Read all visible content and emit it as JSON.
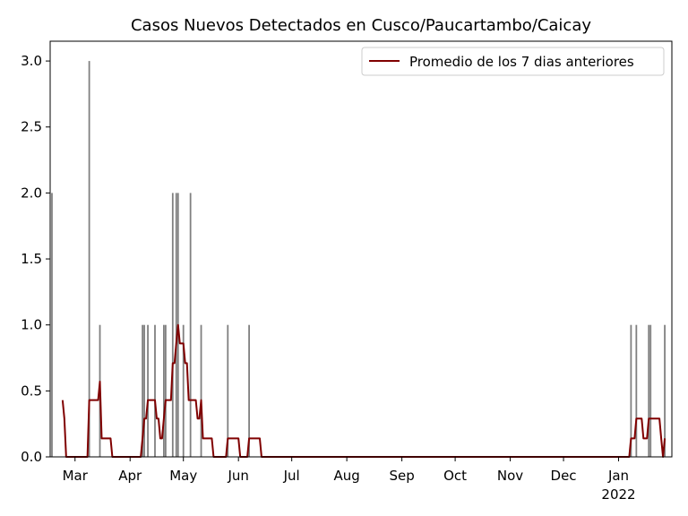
{
  "chart_data": {
    "type": "bar",
    "title": "Casos Nuevos Detectados en Cusco/Paucartambo/Caicay",
    "xlabel": "",
    "ylabel": "",
    "ylim": [
      0,
      3.15
    ],
    "x_range": [
      "2021-02-15",
      "2022-01-31"
    ],
    "yticks": [
      "0.0",
      "0.5",
      "1.0",
      "1.5",
      "2.0",
      "2.5",
      "3.0"
    ],
    "xticks": [
      {
        "date": "2021-03-01",
        "label": "Mar"
      },
      {
        "date": "2021-04-01",
        "label": "Apr"
      },
      {
        "date": "2021-05-01",
        "label": "May"
      },
      {
        "date": "2021-06-01",
        "label": "Jun"
      },
      {
        "date": "2021-07-01",
        "label": "Jul"
      },
      {
        "date": "2021-08-01",
        "label": "Aug"
      },
      {
        "date": "2021-09-01",
        "label": "Sep"
      },
      {
        "date": "2021-10-01",
        "label": "Oct"
      },
      {
        "date": "2021-11-01",
        "label": "Nov"
      },
      {
        "date": "2021-12-01",
        "label": "Dec"
      },
      {
        "date": "2022-01-01",
        "label": "Jan",
        "sublabel": "2022"
      }
    ],
    "bars": [
      {
        "date": "2021-02-16",
        "value": 2
      },
      {
        "date": "2021-03-09",
        "value": 3
      },
      {
        "date": "2021-03-15",
        "value": 1
      },
      {
        "date": "2021-04-08",
        "value": 1
      },
      {
        "date": "2021-04-09",
        "value": 1
      },
      {
        "date": "2021-04-11",
        "value": 1
      },
      {
        "date": "2021-04-15",
        "value": 1
      },
      {
        "date": "2021-04-20",
        "value": 1
      },
      {
        "date": "2021-04-21",
        "value": 1
      },
      {
        "date": "2021-04-25",
        "value": 2
      },
      {
        "date": "2021-04-27",
        "value": 2
      },
      {
        "date": "2021-04-28",
        "value": 2
      },
      {
        "date": "2021-05-01",
        "value": 1
      },
      {
        "date": "2021-05-05",
        "value": 2
      },
      {
        "date": "2021-05-11",
        "value": 1
      },
      {
        "date": "2021-05-26",
        "value": 1
      },
      {
        "date": "2021-06-07",
        "value": 1
      },
      {
        "date": "2022-01-08",
        "value": 1
      },
      {
        "date": "2022-01-11",
        "value": 1
      },
      {
        "date": "2022-01-18",
        "value": 1
      },
      {
        "date": "2022-01-19",
        "value": 1
      },
      {
        "date": "2022-01-27",
        "value": 1
      }
    ],
    "series": [
      {
        "name": "Promedio de los 7 dias anteriores",
        "color": "#800000",
        "points": [
          [
            "2021-02-22",
            0.43
          ],
          [
            "2021-02-23",
            0.29
          ],
          [
            "2021-02-24",
            0.0
          ],
          [
            "2021-03-08",
            0.0
          ],
          [
            "2021-03-09",
            0.43
          ],
          [
            "2021-03-14",
            0.43
          ],
          [
            "2021-03-15",
            0.57
          ],
          [
            "2021-03-16",
            0.14
          ],
          [
            "2021-03-21",
            0.14
          ],
          [
            "2021-03-22",
            0.0
          ],
          [
            "2021-04-07",
            0.0
          ],
          [
            "2021-04-08",
            0.14
          ],
          [
            "2021-04-09",
            0.29
          ],
          [
            "2021-04-10",
            0.29
          ],
          [
            "2021-04-11",
            0.43
          ],
          [
            "2021-04-15",
            0.43
          ],
          [
            "2021-04-16",
            0.29
          ],
          [
            "2021-04-17",
            0.29
          ],
          [
            "2021-04-18",
            0.14
          ],
          [
            "2021-04-19",
            0.14
          ],
          [
            "2021-04-20",
            0.29
          ],
          [
            "2021-04-21",
            0.43
          ],
          [
            "2021-04-24",
            0.43
          ],
          [
            "2021-04-25",
            0.71
          ],
          [
            "2021-04-26",
            0.71
          ],
          [
            "2021-04-27",
            0.86
          ],
          [
            "2021-04-28",
            1.0
          ],
          [
            "2021-04-29",
            0.86
          ],
          [
            "2021-05-01",
            0.86
          ],
          [
            "2021-05-02",
            0.71
          ],
          [
            "2021-05-03",
            0.71
          ],
          [
            "2021-05-04",
            0.43
          ],
          [
            "2021-05-08",
            0.43
          ],
          [
            "2021-05-09",
            0.29
          ],
          [
            "2021-05-10",
            0.29
          ],
          [
            "2021-05-11",
            0.43
          ],
          [
            "2021-05-12",
            0.14
          ],
          [
            "2021-05-17",
            0.14
          ],
          [
            "2021-05-18",
            0.0
          ],
          [
            "2021-05-25",
            0.0
          ],
          [
            "2021-05-26",
            0.14
          ],
          [
            "2021-06-01",
            0.14
          ],
          [
            "2021-06-02",
            0.0
          ],
          [
            "2021-06-06",
            0.0
          ],
          [
            "2021-06-07",
            0.14
          ],
          [
            "2021-06-13",
            0.14
          ],
          [
            "2021-06-14",
            0.0
          ],
          [
            "2022-01-07",
            0.0
          ],
          [
            "2022-01-08",
            0.14
          ],
          [
            "2022-01-10",
            0.14
          ],
          [
            "2022-01-11",
            0.29
          ],
          [
            "2022-01-14",
            0.29
          ],
          [
            "2022-01-15",
            0.14
          ],
          [
            "2022-01-17",
            0.14
          ],
          [
            "2022-01-18",
            0.29
          ],
          [
            "2022-01-24",
            0.29
          ],
          [
            "2022-01-25",
            0.14
          ],
          [
            "2022-01-26",
            0.0
          ],
          [
            "2022-01-27",
            0.14
          ]
        ]
      }
    ],
    "legend": {
      "position": "top-right"
    },
    "grid": false,
    "colors": {
      "bars": "#808080",
      "line": "#800000"
    }
  }
}
